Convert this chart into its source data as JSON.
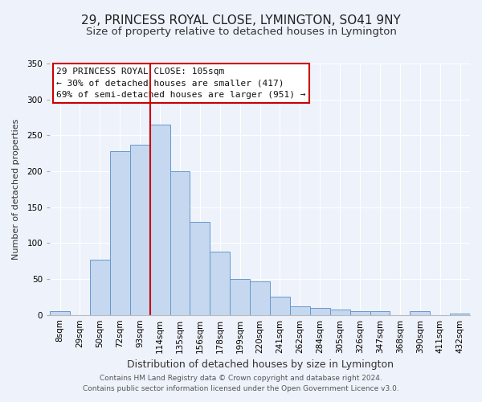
{
  "title": "29, PRINCESS ROYAL CLOSE, LYMINGTON, SO41 9NY",
  "subtitle": "Size of property relative to detached houses in Lymington",
  "xlabel": "Distribution of detached houses by size in Lymington",
  "ylabel": "Number of detached properties",
  "bar_labels": [
    "8sqm",
    "29sqm",
    "50sqm",
    "72sqm",
    "93sqm",
    "114sqm",
    "135sqm",
    "156sqm",
    "178sqm",
    "199sqm",
    "220sqm",
    "241sqm",
    "262sqm",
    "284sqm",
    "305sqm",
    "326sqm",
    "347sqm",
    "368sqm",
    "390sqm",
    "411sqm",
    "432sqm"
  ],
  "bar_values": [
    5,
    0,
    77,
    228,
    237,
    265,
    200,
    130,
    88,
    50,
    47,
    25,
    12,
    10,
    8,
    5,
    5,
    0,
    5,
    0,
    2
  ],
  "bar_color": "#c5d8f0",
  "bar_edge_color": "#6699cc",
  "vline_color": "#cc0000",
  "annotation_text_line1": "29 PRINCESS ROYAL CLOSE: 105sqm",
  "annotation_text_line2": "← 30% of detached houses are smaller (417)",
  "annotation_text_line3": "69% of semi-detached houses are larger (951) →",
  "annotation_box_color": "#ffffff",
  "annotation_border_color": "#cc0000",
  "ylim": [
    0,
    350
  ],
  "yticks": [
    0,
    50,
    100,
    150,
    200,
    250,
    300,
    350
  ],
  "footnote_line1": "Contains HM Land Registry data © Crown copyright and database right 2024.",
  "footnote_line2": "Contains public sector information licensed under the Open Government Licence v3.0.",
  "bg_color": "#eef2fa",
  "grid_color": "#ffffff",
  "title_fontsize": 11,
  "subtitle_fontsize": 9.5,
  "xlabel_fontsize": 9,
  "ylabel_fontsize": 8,
  "tick_fontsize": 7.5,
  "annotation_fontsize": 8,
  "footnote_fontsize": 6.5
}
